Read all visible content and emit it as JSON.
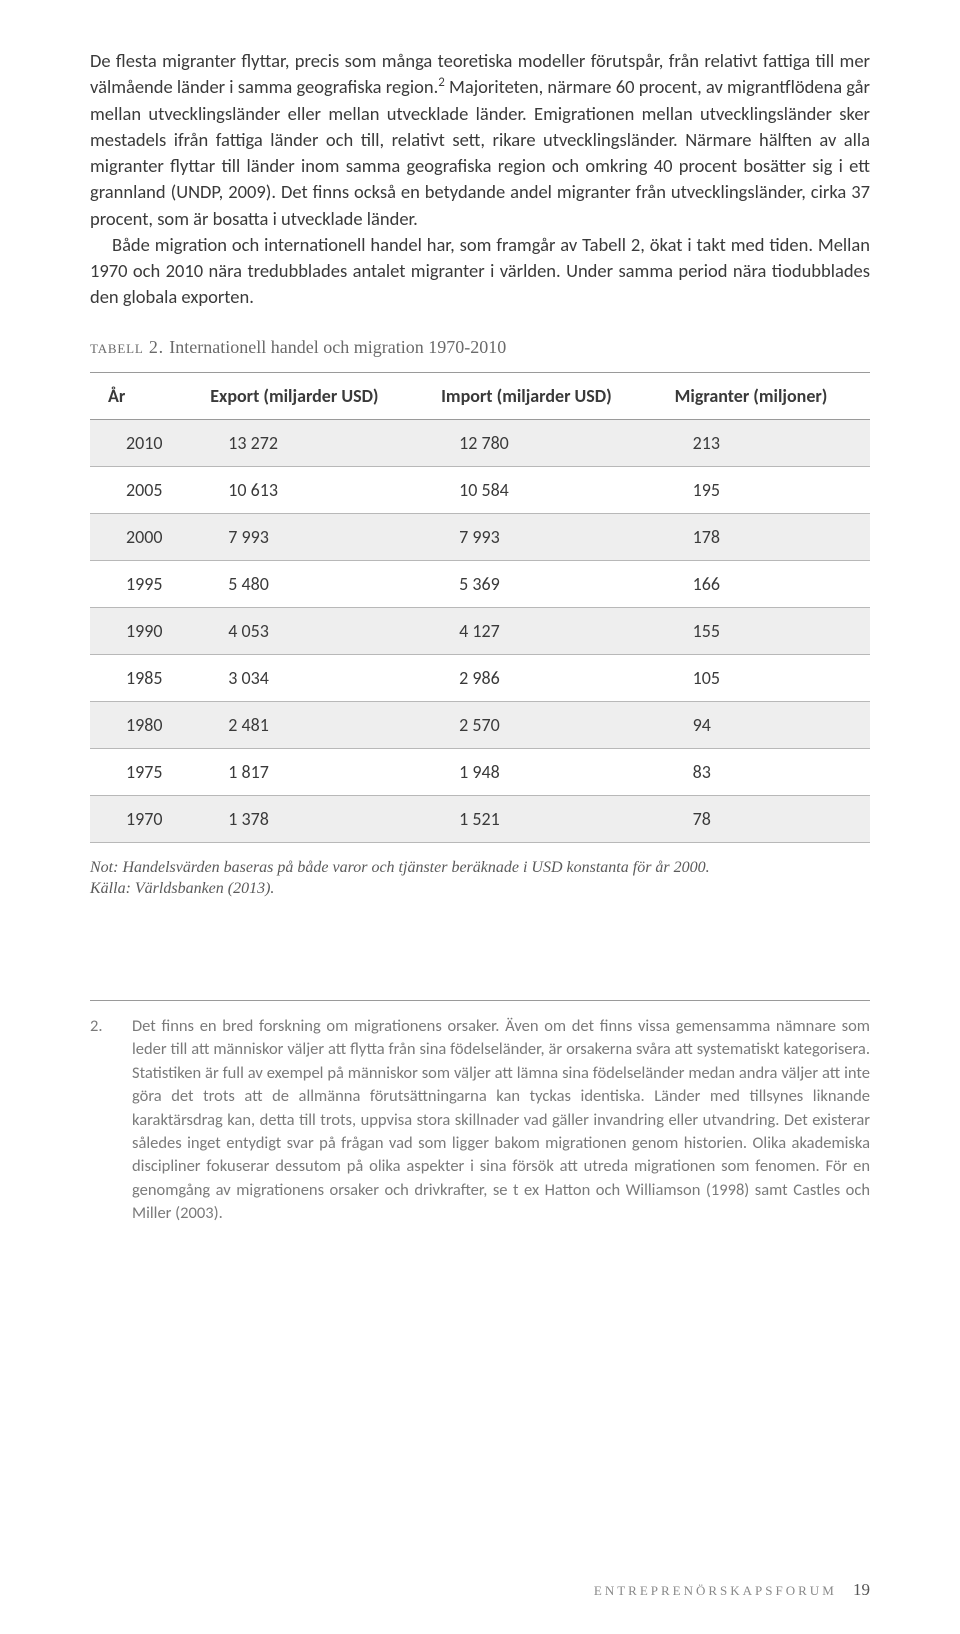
{
  "paragraphs": {
    "p1": "De flesta migranter flyttar, precis som många teoretiska modeller förutspår, från relativt fattiga till mer välmående länder i samma geografiska region.",
    "p1_sup": "2",
    "p1_cont": " Majoriteten, närmare 60 procent, av migrantflödena går mellan utvecklingsländer eller mellan utvecklade länder. Emigrationen mellan utvecklingsländer sker mestadels ifrån fattiga länder och till, relativt sett, rikare utvecklingsländer. Närmare hälften av alla migranter flyttar till länder inom samma geografiska region och omkring 40 procent bosätter sig i ett grannland (UNDP, 2009). Det finns också en betydande andel migranter från utvecklingsländer, cirka 37 procent, som är bosatta i utvecklade länder.",
    "p2": "Både migration och internationell handel har, som framgår av Tabell 2, ökat i takt med tiden. Mellan 1970 och 2010 nära tredubblades antalet migranter i världen. Under samma period nära tiodubblades den globala exporten."
  },
  "table": {
    "type": "table",
    "caption_label": "tabell 2. ",
    "caption_text": "Internationell handel och migration 1970-2010",
    "columns": [
      "År",
      "Export (miljarder USD)",
      "Import (miljarder USD)",
      "Migranter (miljoner)"
    ],
    "rows": [
      [
        "2010",
        "13 272",
        "12 780",
        "213"
      ],
      [
        "2005",
        "10 613",
        "10 584",
        "195"
      ],
      [
        "2000",
        "7 993",
        "7 993",
        "178"
      ],
      [
        "1995",
        "5 480",
        "5 369",
        "166"
      ],
      [
        "1990",
        "4 053",
        "4 127",
        "155"
      ],
      [
        "1985",
        "3 034",
        "2 986",
        "105"
      ],
      [
        "1980",
        "2 481",
        "2 570",
        "94"
      ],
      [
        "1975",
        "1 817",
        "1 948",
        "83"
      ],
      [
        "1970",
        "1 378",
        "1 521",
        "78"
      ]
    ],
    "note_line1": "Not: Handelsvärden baseras på både varor och tjänster beräknade i USD konstanta för år 2000.",
    "note_line2": "Källa: Världsbanken (2013).",
    "border_color": "#9a9a9a",
    "stripe_color": "#eeeeee",
    "text_color": "#3a3a3a",
    "font_size_pt": 13
  },
  "footnote": {
    "num": "2.",
    "text": "Det finns en bred forskning om migrationens orsaker. Även om det finns vissa gemensamma nämnare som leder till att människor väljer att flytta från sina födelseländer, är orsakerna svåra att systematiskt kategorisera. Statistiken är full av exempel på människor som väljer att lämna sina födelseländer medan andra väljer att inte göra det trots att de allmänna förutsättningarna kan tyckas identiska. Länder med tillsynes liknande karaktärsdrag kan, detta till trots, uppvisa stora skillnader vad gäller invandring eller utvandring. Det existerar således inget entydigt svar på frågan vad som ligger bakom migrationen genom historien. Olika akademiska discipliner fokuserar dessutom på olika aspekter i sina försök att utreda migrationen som fenomen. För en genomgång av migrationens orsaker och drivkrafter, se t ex Hatton och Williamson (1998) samt Castles och Miller (2003)."
  },
  "footer": {
    "text": "ENTREPRENÖRSKAPSFORUM",
    "page": "19"
  },
  "style": {
    "page_bg": "#ffffff",
    "body_text_color": "#3a3a3a",
    "muted_text_color": "#7a7a7a",
    "font_body_pt": 14,
    "font_caption_pt": 13
  }
}
